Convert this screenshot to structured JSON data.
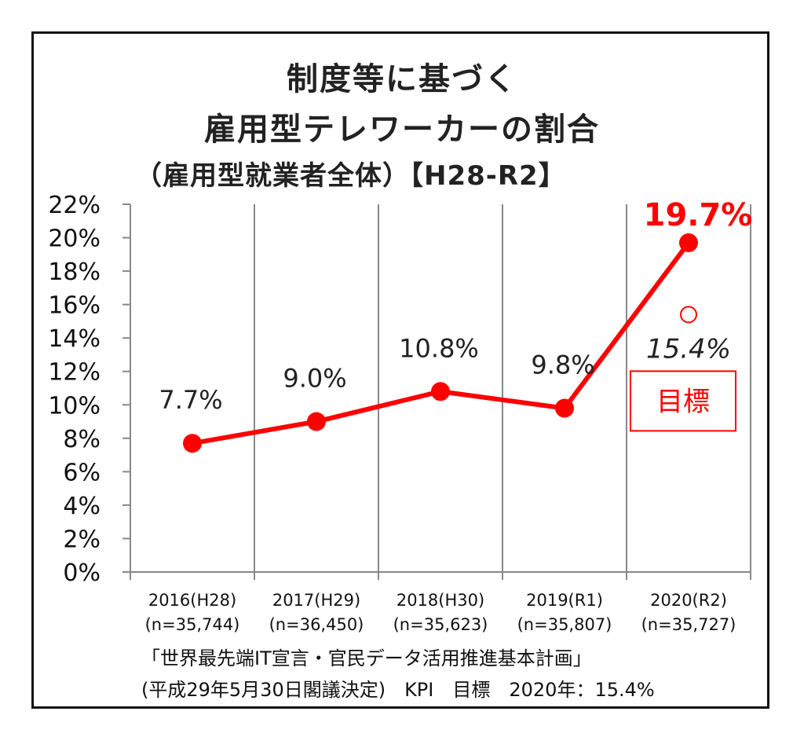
{
  "chart_data": {
    "type": "line",
    "title_line1": "制度等に基づく",
    "title_line2": "雇用型テレワーカーの割合",
    "subtitle": "（雇用型就業者全体）【H28-R2】",
    "categories": [
      "2016(H28)",
      "2017(H29)",
      "2018(H30)",
      "2019(R1)",
      "2020(R2)"
    ],
    "sample_sizes": [
      "(n=35,744)",
      "(n=36,450)",
      "(n=35,623)",
      "(n=35,807)",
      "(n=35,727)"
    ],
    "values": [
      7.7,
      9.0,
      10.8,
      9.8,
      19.7
    ],
    "data_labels": [
      "7.7%",
      "9.0%",
      "10.8%",
      "9.8%",
      "19.7%"
    ],
    "ylim": [
      0,
      22
    ],
    "y_ticks": [
      "0%",
      "2%",
      "4%",
      "6%",
      "8%",
      "10%",
      "12%",
      "14%",
      "16%",
      "18%",
      "20%",
      "22%"
    ],
    "grid": "vertical",
    "target": {
      "category": "2020(R2)",
      "value": 15.4,
      "label": "15.4%",
      "box_label": "目標"
    },
    "line_color": "#ff0000",
    "axis_color": "#888888"
  },
  "footer": {
    "line1": "「世界最先端IT宣言・官民データ活用推進基本計画」",
    "line2": "(平成29年5月30日閣議決定)　KPI　目標　2020年：15.4%"
  }
}
